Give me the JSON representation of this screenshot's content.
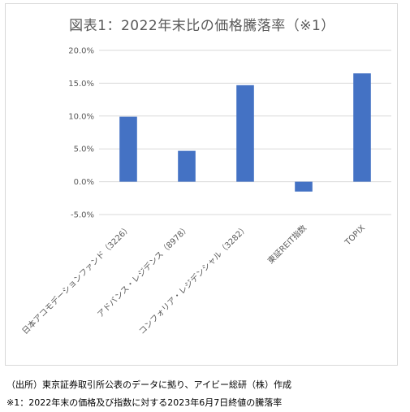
{
  "chart_data": {
    "type": "bar",
    "title": "図表1：2022年末比の価格騰落率（※1）",
    "categories": [
      "日本アコモデーションファンド（3226）",
      "アドバンス・レジデンス（8978）",
      "コンフォリア・レジデンシャル（3282）",
      "東証REIT指数",
      "TOPIX"
    ],
    "values": [
      9.9,
      4.7,
      14.7,
      -1.5,
      16.5
    ],
    "y_ticks": [
      "20.0%",
      "15.0%",
      "10.0%",
      "5.0%",
      "0.0%",
      "-5.0%"
    ],
    "ylim": [
      -5,
      20
    ],
    "grid": true,
    "bar_color": "#4472c4"
  },
  "notes": {
    "source": "（出所）東京証券取引所公表のデータに拠り、アイビー総研（株）作成",
    "footnote": "※1：2022年末の価格及び指数に対する2023年6月7日終値の騰落率"
  }
}
